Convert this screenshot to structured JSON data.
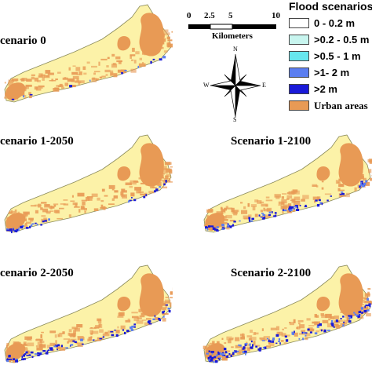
{
  "map": {
    "panels": [
      {
        "id": "scenario-0",
        "title": "cenario 0",
        "flood_level": 0
      },
      {
        "id": "scenario-1-2050",
        "title": "cenario 1-2050",
        "flood_level": 1
      },
      {
        "id": "scenario-1-2100",
        "title": "Scenario 1-2100",
        "flood_level": 2
      },
      {
        "id": "scenario-2-2050",
        "title": "cenario 2-2050",
        "flood_level": 2
      },
      {
        "id": "scenario-2-2100",
        "title": "Scenario 2-2100",
        "flood_level": 3
      }
    ],
    "scale_bar": {
      "ticks": [
        "0",
        "2.5",
        "5",
        "10"
      ],
      "unit": "Kilometers"
    },
    "north_arrow": {
      "n": "N",
      "s": "S",
      "e": "E",
      "w": "W"
    },
    "legend": {
      "title": "Flood scenarios",
      "items": [
        {
          "label": "0 - 0.2 m",
          "color": "#ffffff"
        },
        {
          "label": ">0.2 - 0.5 m",
          "color": "#c8f5ef"
        },
        {
          "label": ">0.5 - 1 m",
          "color": "#66e6ee"
        },
        {
          "label": ">1- 2 m",
          "color": "#5b7ef0"
        },
        {
          "label": ">2 m",
          "color": "#1a1ad8"
        },
        {
          "label": "Urban areas",
          "color": "#e89a55"
        }
      ]
    },
    "colors": {
      "land": "#fcf2a8",
      "urban": "#e89a55",
      "outline": "#8a8a5a",
      "flood_deep": "#1a1ad8",
      "flood_mid": "#5b7ef0"
    }
  }
}
